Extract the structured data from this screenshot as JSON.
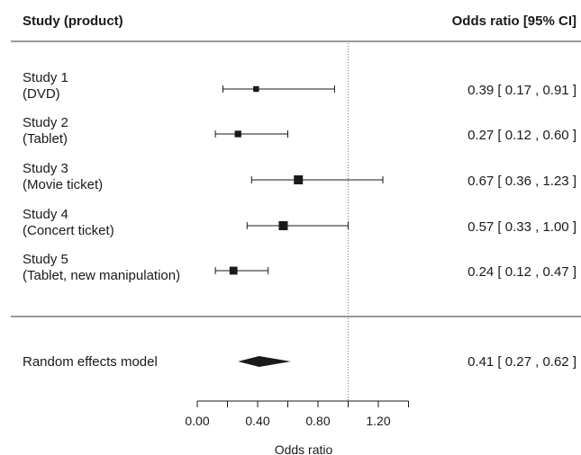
{
  "header": {
    "left": "Study (product)",
    "right": "Odds ratio [95% CI]"
  },
  "chart_data": {
    "type": "forest",
    "xlabel": "Odds ratio",
    "xlim": [
      0,
      1.45
    ],
    "ticks": [
      "0.00",
      "0.40",
      "0.80",
      "1.20"
    ],
    "tick_values": [
      0,
      0.4,
      0.8,
      1.2
    ],
    "minor_ticks": [
      0.2,
      0.6,
      1.0,
      1.4
    ],
    "reference_line": 1.0,
    "studies": [
      {
        "label_line1": "Study 1",
        "label_line2": "(DVD)",
        "estimate": 0.39,
        "lower": 0.17,
        "upper": 0.91,
        "weight": 0.4,
        "ci_text": "0.39 [ 0.17 , 0.91 ]"
      },
      {
        "label_line1": "Study 2",
        "label_line2": "(Tablet)",
        "estimate": 0.27,
        "lower": 0.12,
        "upper": 0.6,
        "weight": 0.55,
        "ci_text": "0.27 [ 0.12 , 0.60 ]"
      },
      {
        "label_line1": "Study 3",
        "label_line2": "(Movie ticket)",
        "estimate": 0.67,
        "lower": 0.36,
        "upper": 1.23,
        "weight": 1.0,
        "ci_text": "0.67 [ 0.36 , 1.23 ]"
      },
      {
        "label_line1": "Study 4",
        "label_line2": "(Concert ticket)",
        "estimate": 0.57,
        "lower": 0.33,
        "upper": 1.0,
        "weight": 1.0,
        "ci_text": "0.57 [ 0.33 , 1.00 ]"
      },
      {
        "label_line1": "Study 5",
        "label_line2": "(Tablet, new manipulation)",
        "estimate": 0.24,
        "lower": 0.12,
        "upper": 0.47,
        "weight": 0.8,
        "ci_text": "0.24 [ 0.12 , 0.47 ]"
      }
    ],
    "summary": {
      "label": "Random effects model",
      "estimate": 0.41,
      "lower": 0.27,
      "upper": 0.62,
      "ci_text": "0.41 [ 0.27 , 0.62 ]"
    }
  }
}
